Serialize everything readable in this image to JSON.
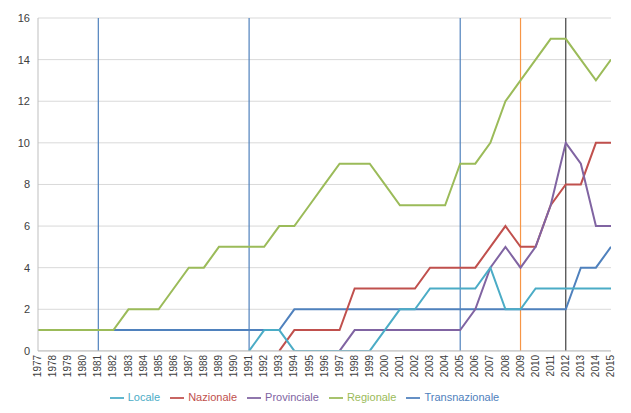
{
  "chart_data": {
    "type": "line",
    "x": [
      1977,
      1978,
      1979,
      1980,
      1981,
      1982,
      1983,
      1984,
      1985,
      1986,
      1987,
      1988,
      1989,
      1990,
      1991,
      1992,
      1993,
      1994,
      1995,
      1996,
      1997,
      1998,
      1999,
      2000,
      2001,
      2002,
      2003,
      2004,
      2005,
      2006,
      2007,
      2008,
      2009,
      2010,
      2011,
      2012,
      2013,
      2014,
      2015
    ],
    "xlim": [
      1977,
      2015
    ],
    "xticks": [
      1977,
      1978,
      1979,
      1980,
      1981,
      1982,
      1983,
      1984,
      1985,
      1986,
      1987,
      1988,
      1989,
      1990,
      1991,
      1992,
      1993,
      1994,
      1995,
      1996,
      1997,
      1998,
      1999,
      2000,
      2001,
      2002,
      2003,
      2004,
      2005,
      2006,
      2007,
      2008,
      2009,
      2010,
      2011,
      2012,
      2013,
      2014,
      2015
    ],
    "ylim": [
      0,
      16
    ],
    "yticks": [
      0,
      2,
      4,
      6,
      8,
      10,
      12,
      14,
      16
    ],
    "grid": true,
    "legend": "bottom",
    "series": [
      {
        "name": "Transnazionale",
        "color": "#4f81bd",
        "values": [
          null,
          null,
          null,
          null,
          1,
          1,
          1,
          1,
          1,
          1,
          1,
          1,
          1,
          1,
          1,
          1,
          1,
          2,
          2,
          2,
          2,
          2,
          2,
          2,
          2,
          2,
          2,
          2,
          2,
          2,
          2,
          2,
          2,
          2,
          2,
          2,
          4,
          4,
          5
        ]
      },
      {
        "name": "Nazionale",
        "color": "#c0504d",
        "values": [
          null,
          null,
          null,
          null,
          null,
          null,
          null,
          null,
          null,
          null,
          null,
          null,
          null,
          null,
          null,
          null,
          0,
          1,
          1,
          1,
          1,
          3,
          3,
          3,
          3,
          3,
          4,
          4,
          4,
          4,
          5,
          6,
          5,
          5,
          7,
          8,
          8,
          10,
          10
        ]
      },
      {
        "name": "Regionale",
        "color": "#9bbb59",
        "values": [
          1,
          1,
          1,
          1,
          1,
          1,
          2,
          2,
          2,
          3,
          4,
          4,
          5,
          5,
          5,
          5,
          6,
          6,
          7,
          8,
          9,
          9,
          9,
          8,
          7,
          7,
          7,
          7,
          9,
          9,
          10,
          12,
          13,
          14,
          15,
          15,
          14,
          13,
          14
        ]
      },
      {
        "name": "Provinciale",
        "color": "#8064a2",
        "values": [
          null,
          null,
          null,
          null,
          null,
          null,
          null,
          null,
          null,
          null,
          null,
          null,
          null,
          null,
          null,
          null,
          null,
          null,
          null,
          null,
          0,
          1,
          1,
          1,
          1,
          1,
          1,
          1,
          1,
          2,
          4,
          5,
          4,
          5,
          7,
          10,
          9,
          6,
          6
        ]
      },
      {
        "name": "Locale",
        "color": "#4bacc6",
        "values": [
          null,
          null,
          null,
          null,
          null,
          null,
          null,
          null,
          null,
          null,
          null,
          null,
          null,
          null,
          0,
          1,
          1,
          0,
          0,
          0,
          0,
          0,
          0,
          1,
          2,
          2,
          3,
          3,
          3,
          3,
          4,
          2,
          2,
          3,
          3,
          3,
          3,
          3,
          3
        ]
      }
    ],
    "reference_lines": [
      {
        "x": 1981,
        "color": "#4f81bd"
      },
      {
        "x": 1991,
        "color": "#4f81bd"
      },
      {
        "x": 2005,
        "color": "#4f81bd"
      },
      {
        "x": 2009,
        "color": "#f79646"
      },
      {
        "x": 2012,
        "color": "#404040"
      }
    ]
  }
}
